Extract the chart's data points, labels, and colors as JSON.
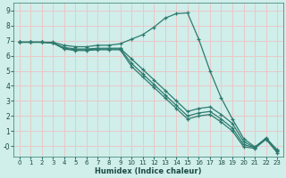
{
  "xlabel": "Humidex (Indice chaleur)",
  "bg_color": "#d0eeea",
  "grid_color": "#e8c8c8",
  "line_color": "#2d7a6e",
  "xlim": [
    -0.5,
    23.5
  ],
  "ylim": [
    -0.7,
    9.5
  ],
  "xticks": [
    0,
    1,
    2,
    3,
    4,
    5,
    6,
    7,
    8,
    9,
    10,
    11,
    12,
    13,
    14,
    15,
    16,
    17,
    18,
    19,
    20,
    21,
    22,
    23
  ],
  "yticks": [
    0,
    1,
    2,
    3,
    4,
    5,
    6,
    7,
    8,
    9
  ],
  "ytick_labels": [
    "0",
    "1",
    "2",
    "3",
    "4",
    "5",
    "6",
    "7",
    "8",
    "9"
  ],
  "series": [
    {
      "x": [
        0,
        1,
        2,
        3,
        4,
        5,
        6,
        7,
        8,
        9,
        10,
        11,
        12,
        13,
        14,
        15,
        16,
        17,
        18,
        19,
        20,
        21,
        22,
        23
      ],
      "y": [
        6.9,
        6.9,
        6.9,
        6.9,
        6.7,
        6.6,
        6.6,
        6.7,
        6.7,
        6.8,
        7.1,
        7.4,
        7.9,
        8.5,
        8.8,
        8.85,
        7.1,
        5.0,
        3.2,
        1.8,
        0.5,
        -0.05,
        0.5,
        -0.25
      ]
    },
    {
      "x": [
        0,
        1,
        2,
        3,
        4,
        5,
        6,
        7,
        8,
        9,
        10,
        11,
        12,
        13,
        14,
        15,
        16,
        17,
        18,
        19,
        20,
        21,
        22,
        23
      ],
      "y": [
        6.9,
        6.9,
        6.9,
        6.85,
        6.55,
        6.45,
        6.45,
        6.5,
        6.5,
        6.5,
        5.8,
        5.1,
        4.4,
        3.7,
        3.0,
        2.3,
        2.5,
        2.6,
        2.1,
        1.5,
        0.3,
        -0.1,
        0.55,
        -0.3
      ]
    },
    {
      "x": [
        0,
        1,
        2,
        3,
        4,
        5,
        6,
        7,
        8,
        9,
        10,
        11,
        12,
        13,
        14,
        15,
        16,
        17,
        18,
        19,
        20,
        21,
        22,
        23
      ],
      "y": [
        6.9,
        6.9,
        6.9,
        6.85,
        6.5,
        6.4,
        6.4,
        6.45,
        6.45,
        6.45,
        5.5,
        4.8,
        4.1,
        3.4,
        2.7,
        2.0,
        2.2,
        2.3,
        1.8,
        1.2,
        0.1,
        -0.1,
        0.5,
        -0.35
      ]
    },
    {
      "x": [
        0,
        1,
        2,
        3,
        4,
        5,
        6,
        7,
        8,
        9,
        10,
        11,
        12,
        13,
        14,
        15,
        16,
        17,
        18,
        19,
        20,
        21,
        22,
        23
      ],
      "y": [
        6.9,
        6.9,
        6.9,
        6.85,
        6.45,
        6.35,
        6.35,
        6.4,
        6.4,
        6.4,
        5.3,
        4.6,
        3.9,
        3.2,
        2.5,
        1.8,
        2.0,
        2.1,
        1.6,
        1.0,
        -0.05,
        -0.15,
        0.45,
        -0.45
      ]
    }
  ]
}
